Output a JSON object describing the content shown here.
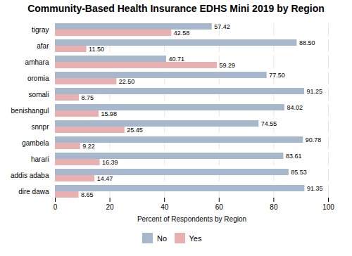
{
  "chart_data": {
    "type": "bar",
    "orientation": "horizontal",
    "title": "Community-Based Health Insurance EDHS Mini 2019 by Region",
    "xlabel": "Percent of Respondents by Region",
    "categories": [
      "tigray",
      "afar",
      "amhara",
      "oromia",
      "somali",
      "benishangul",
      "snnpr",
      "gambela",
      "harari",
      "addis adaba",
      "dire dawa"
    ],
    "series": [
      {
        "name": "No",
        "color": "#a8b8cc",
        "values": [
          57.42,
          88.5,
          40.71,
          77.5,
          91.25,
          84.02,
          74.55,
          90.78,
          83.61,
          85.53,
          91.35
        ],
        "value_labels": [
          "57.42",
          "88.50",
          "40.71",
          "77.50",
          "91.25",
          "84.02",
          "74.55",
          "90.78",
          "83.61",
          "85.53",
          "91.35"
        ]
      },
      {
        "name": "Yes",
        "color": "#e8b0b0",
        "values": [
          42.58,
          11.5,
          59.29,
          22.5,
          8.75,
          15.98,
          25.45,
          9.22,
          16.39,
          14.47,
          8.65
        ],
        "value_labels": [
          "42.58",
          "11.50",
          "59.29",
          "22.50",
          "8.75",
          "15.98",
          "25.45",
          "9.22",
          "16.39",
          "14.47",
          "8.65"
        ]
      }
    ],
    "xlim": [
      0,
      100
    ],
    "xticks": [
      0,
      20,
      40,
      60,
      80,
      100
    ],
    "grid": true,
    "legend": "bottom",
    "data_labels": true
  }
}
